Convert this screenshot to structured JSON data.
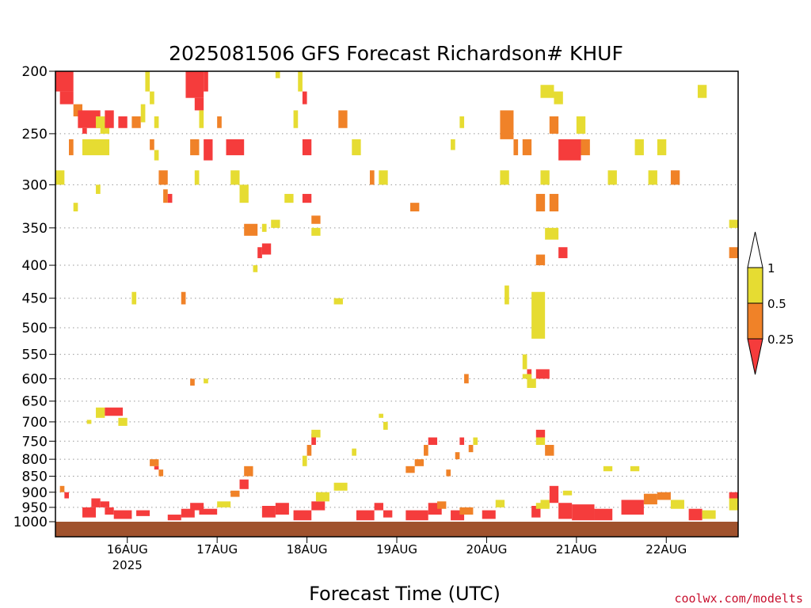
{
  "chart_data": {
    "type": "heatmap",
    "title": "2025081506 GFS Forecast Richardson# KHUF",
    "xlabel": "Forecast Time (UTC)",
    "ylabel": "",
    "credit": "coolwx.com/modelts",
    "y_scale": "log",
    "y_reversed": true,
    "ylim": [
      1000,
      200
    ],
    "y_ticks": [
      200,
      250,
      300,
      350,
      400,
      450,
      500,
      550,
      600,
      650,
      700,
      750,
      800,
      850,
      900,
      950,
      1000
    ],
    "xlim": [
      -0.8,
      6.8
    ],
    "x_ticks": [
      {
        "value": 0,
        "label": "16AUG",
        "sublabel": "2025"
      },
      {
        "value": 1,
        "label": "17AUG",
        "sublabel": ""
      },
      {
        "value": 2,
        "label": "18AUG",
        "sublabel": ""
      },
      {
        "value": 3,
        "label": "19AUG",
        "sublabel": ""
      },
      {
        "value": 4,
        "label": "20AUG",
        "sublabel": ""
      },
      {
        "value": 5,
        "label": "21AUG",
        "sublabel": ""
      },
      {
        "value": 6,
        "label": "22AUG",
        "sublabel": ""
      }
    ],
    "grid": true,
    "legend": {
      "placement": "right",
      "bins": [
        {
          "label": "0.25",
          "color": "#f53c3c"
        },
        {
          "label": "0.5",
          "color": "#f08228"
        },
        {
          "label": "1",
          "color": "#e6dc32"
        }
      ]
    },
    "ground_color": "#a0522d",
    "cells": [
      [
        -0.8,
        -0.6,
        200,
        215,
        "r"
      ],
      [
        -0.75,
        -0.6,
        215,
        225,
        "r"
      ],
      [
        -0.6,
        -0.5,
        225,
        235,
        "o"
      ],
      [
        -0.55,
        -0.3,
        230,
        245,
        "r"
      ],
      [
        -0.5,
        -0.45,
        245,
        250,
        "r"
      ],
      [
        -0.35,
        -0.25,
        235,
        245,
        "y"
      ],
      [
        -0.65,
        -0.6,
        255,
        270,
        "o"
      ],
      [
        -0.5,
        -0.2,
        255,
        270,
        "y"
      ],
      [
        -0.3,
        -0.2,
        240,
        250,
        "y"
      ],
      [
        -0.25,
        -0.15,
        230,
        245,
        "r"
      ],
      [
        -0.1,
        0.0,
        235,
        245,
        "r"
      ],
      [
        0.05,
        0.15,
        235,
        245,
        "o"
      ],
      [
        -0.8,
        -0.7,
        285,
        300,
        "y"
      ],
      [
        -0.6,
        -0.55,
        320,
        330,
        "y"
      ],
      [
        -0.35,
        -0.3,
        300,
        310,
        "y"
      ],
      [
        0.2,
        0.25,
        200,
        215,
        "y"
      ],
      [
        0.25,
        0.3,
        215,
        225,
        "y"
      ],
      [
        0.15,
        0.2,
        225,
        240,
        "y"
      ],
      [
        0.3,
        0.35,
        235,
        245,
        "y"
      ],
      [
        0.25,
        0.3,
        255,
        265,
        "o"
      ],
      [
        0.3,
        0.35,
        265,
        275,
        "y"
      ],
      [
        0.35,
        0.45,
        285,
        300,
        "o"
      ],
      [
        0.4,
        0.45,
        305,
        320,
        "o"
      ],
      [
        0.45,
        0.5,
        310,
        320,
        "r"
      ],
      [
        0.65,
        0.85,
        200,
        220,
        "r"
      ],
      [
        0.75,
        0.85,
        220,
        230,
        "r"
      ],
      [
        0.85,
        0.9,
        200,
        215,
        "r"
      ],
      [
        0.8,
        0.85,
        230,
        245,
        "y"
      ],
      [
        0.7,
        0.8,
        255,
        270,
        "o"
      ],
      [
        0.85,
        0.95,
        255,
        275,
        "r"
      ],
      [
        0.75,
        0.8,
        285,
        300,
        "y"
      ],
      [
        1.0,
        1.05,
        235,
        245,
        "o"
      ],
      [
        1.1,
        1.3,
        255,
        270,
        "r"
      ],
      [
        1.15,
        1.25,
        285,
        300,
        "y"
      ],
      [
        1.25,
        1.35,
        300,
        320,
        "y"
      ],
      [
        1.3,
        1.45,
        345,
        360,
        "o"
      ],
      [
        1.45,
        1.5,
        375,
        390,
        "r"
      ],
      [
        1.5,
        1.6,
        370,
        385,
        "r"
      ],
      [
        1.65,
        1.7,
        200,
        205,
        "y"
      ],
      [
        1.9,
        1.95,
        200,
        215,
        "y"
      ],
      [
        1.95,
        2.0,
        215,
        225,
        "r"
      ],
      [
        1.85,
        1.9,
        230,
        245,
        "y"
      ],
      [
        1.95,
        2.05,
        255,
        270,
        "r"
      ],
      [
        1.75,
        1.85,
        310,
        320,
        "y"
      ],
      [
        1.95,
        2.05,
        310,
        320,
        "r"
      ],
      [
        2.05,
        2.15,
        335,
        345,
        "o"
      ],
      [
        1.5,
        1.55,
        345,
        355,
        "y"
      ],
      [
        1.4,
        1.45,
        400,
        410,
        "y"
      ],
      [
        1.6,
        1.7,
        340,
        350,
        "y"
      ],
      [
        2.05,
        2.15,
        350,
        360,
        "y"
      ],
      [
        2.3,
        2.4,
        450,
        460,
        "y"
      ],
      [
        2.35,
        2.45,
        230,
        245,
        "o"
      ],
      [
        2.5,
        2.6,
        255,
        270,
        "y"
      ],
      [
        2.7,
        2.75,
        285,
        300,
        "o"
      ],
      [
        2.8,
        2.9,
        285,
        300,
        "y"
      ],
      [
        3.15,
        3.25,
        320,
        330,
        "o"
      ],
      [
        3.6,
        3.65,
        255,
        265,
        "y"
      ],
      [
        3.7,
        3.75,
        235,
        245,
        "y"
      ],
      [
        4.15,
        4.3,
        230,
        255,
        "o"
      ],
      [
        4.3,
        4.35,
        255,
        270,
        "o"
      ],
      [
        4.4,
        4.5,
        255,
        270,
        "o"
      ],
      [
        4.15,
        4.25,
        285,
        300,
        "y"
      ],
      [
        4.6,
        4.7,
        285,
        300,
        "y"
      ],
      [
        4.55,
        4.65,
        310,
        330,
        "o"
      ],
      [
        4.7,
        4.8,
        310,
        330,
        "o"
      ],
      [
        4.7,
        4.8,
        235,
        250,
        "o"
      ],
      [
        4.75,
        4.85,
        215,
        225,
        "y"
      ],
      [
        4.6,
        4.75,
        210,
        220,
        "y"
      ],
      [
        4.65,
        4.8,
        350,
        365,
        "y"
      ],
      [
        4.8,
        4.9,
        375,
        390,
        "r"
      ],
      [
        4.55,
        4.65,
        385,
        400,
        "o"
      ],
      [
        4.8,
        5.05,
        255,
        275,
        "r"
      ],
      [
        5.05,
        5.15,
        255,
        270,
        "o"
      ],
      [
        5.0,
        5.1,
        235,
        250,
        "y"
      ],
      [
        5.35,
        5.45,
        285,
        300,
        "y"
      ],
      [
        5.65,
        5.75,
        255,
        270,
        "y"
      ],
      [
        5.8,
        5.9,
        285,
        300,
        "y"
      ],
      [
        5.9,
        6.0,
        255,
        270,
        "y"
      ],
      [
        6.05,
        6.15,
        285,
        300,
        "o"
      ],
      [
        6.35,
        6.45,
        210,
        220,
        "y"
      ],
      [
        6.7,
        6.8,
        340,
        350,
        "y"
      ],
      [
        6.7,
        6.8,
        375,
        390,
        "o"
      ],
      [
        -0.35,
        -0.25,
        665,
        690,
        "y"
      ],
      [
        -0.25,
        -0.05,
        665,
        685,
        "r"
      ],
      [
        -0.1,
        0.0,
        690,
        710,
        "y"
      ],
      [
        -0.45,
        -0.4,
        695,
        705,
        "y"
      ],
      [
        0.25,
        0.35,
        800,
        820,
        "o"
      ],
      [
        0.3,
        0.35,
        820,
        830,
        "r"
      ],
      [
        0.35,
        0.4,
        830,
        850,
        "o"
      ],
      [
        0.7,
        0.75,
        600,
        615,
        "o"
      ],
      [
        0.6,
        0.65,
        440,
        460,
        "o"
      ],
      [
        0.85,
        0.9,
        600,
        610,
        "y"
      ],
      [
        0.05,
        0.1,
        440,
        460,
        "y"
      ],
      [
        2.05,
        2.1,
        730,
        760,
        "r"
      ],
      [
        2.0,
        2.05,
        760,
        790,
        "o"
      ],
      [
        1.95,
        2.0,
        790,
        820,
        "y"
      ],
      [
        2.05,
        2.15,
        720,
        740,
        "y"
      ],
      [
        2.5,
        2.55,
        770,
        790,
        "y"
      ],
      [
        2.8,
        2.85,
        680,
        690,
        "y"
      ],
      [
        2.85,
        2.9,
        700,
        720,
        "y"
      ],
      [
        3.35,
        3.45,
        740,
        760,
        "r"
      ],
      [
        3.3,
        3.35,
        760,
        790,
        "o"
      ],
      [
        3.2,
        3.3,
        800,
        820,
        "o"
      ],
      [
        3.1,
        3.2,
        820,
        840,
        "o"
      ],
      [
        3.7,
        3.75,
        740,
        760,
        "r"
      ],
      [
        3.8,
        3.85,
        760,
        780,
        "o"
      ],
      [
        3.85,
        3.9,
        740,
        760,
        "y"
      ],
      [
        3.65,
        3.7,
        780,
        800,
        "o"
      ],
      [
        3.55,
        3.6,
        830,
        850,
        "o"
      ],
      [
        3.75,
        3.8,
        590,
        610,
        "o"
      ],
      [
        4.4,
        4.45,
        550,
        580,
        "y"
      ],
      [
        4.45,
        4.5,
        580,
        600,
        "r"
      ],
      [
        4.4,
        4.5,
        590,
        600,
        "y"
      ],
      [
        4.5,
        4.65,
        440,
        520,
        "y"
      ],
      [
        4.55,
        4.7,
        580,
        600,
        "r"
      ],
      [
        4.45,
        4.55,
        600,
        620,
        "y"
      ],
      [
        4.2,
        4.25,
        430,
        460,
        "y"
      ],
      [
        4.55,
        4.65,
        720,
        740,
        "r"
      ],
      [
        4.55,
        4.65,
        740,
        760,
        "y"
      ],
      [
        4.65,
        4.75,
        760,
        790,
        "o"
      ],
      [
        5.3,
        5.4,
        820,
        835,
        "y"
      ],
      [
        5.6,
        5.7,
        820,
        835,
        "y"
      ],
      [
        -0.75,
        -0.7,
        880,
        900,
        "o"
      ],
      [
        -0.7,
        -0.65,
        900,
        920,
        "r"
      ],
      [
        -0.5,
        -0.35,
        950,
        985,
        "r"
      ],
      [
        -0.4,
        -0.3,
        920,
        950,
        "r"
      ],
      [
        -0.25,
        -0.15,
        950,
        975,
        "r"
      ],
      [
        -0.3,
        -0.2,
        930,
        950,
        "r"
      ],
      [
        -0.15,
        0.05,
        960,
        990,
        "r"
      ],
      [
        0.1,
        0.25,
        960,
        980,
        "r"
      ],
      [
        0.45,
        0.6,
        975,
        995,
        "r"
      ],
      [
        0.6,
        0.75,
        955,
        985,
        "r"
      ],
      [
        0.7,
        0.85,
        935,
        960,
        "r"
      ],
      [
        0.8,
        1.0,
        955,
        975,
        "r"
      ],
      [
        1.15,
        1.25,
        895,
        915,
        "o"
      ],
      [
        1.25,
        1.35,
        860,
        890,
        "r"
      ],
      [
        1.3,
        1.4,
        820,
        850,
        "o"
      ],
      [
        1.0,
        1.15,
        930,
        950,
        "y"
      ],
      [
        1.5,
        1.65,
        945,
        985,
        "r"
      ],
      [
        1.65,
        1.8,
        935,
        975,
        "r"
      ],
      [
        1.85,
        2.05,
        960,
        995,
        "r"
      ],
      [
        2.05,
        2.2,
        930,
        960,
        "r"
      ],
      [
        2.1,
        2.25,
        900,
        930,
        "y"
      ],
      [
        2.3,
        2.45,
        870,
        895,
        "y"
      ],
      [
        2.55,
        2.75,
        960,
        995,
        "r"
      ],
      [
        2.75,
        2.85,
        935,
        960,
        "r"
      ],
      [
        2.85,
        2.95,
        960,
        985,
        "r"
      ],
      [
        3.1,
        3.35,
        960,
        995,
        "r"
      ],
      [
        3.35,
        3.5,
        935,
        975,
        "r"
      ],
      [
        3.45,
        3.55,
        930,
        955,
        "o"
      ],
      [
        3.6,
        3.75,
        960,
        995,
        "r"
      ],
      [
        3.7,
        3.85,
        950,
        975,
        "o"
      ],
      [
        3.95,
        4.1,
        960,
        990,
        "r"
      ],
      [
        4.1,
        4.2,
        925,
        950,
        "y"
      ],
      [
        4.5,
        4.6,
        945,
        985,
        "r"
      ],
      [
        4.6,
        4.7,
        925,
        950,
        "y"
      ],
      [
        4.7,
        4.8,
        880,
        935,
        "r"
      ],
      [
        4.8,
        4.95,
        935,
        990,
        "r"
      ],
      [
        4.55,
        4.7,
        935,
        955,
        "y"
      ],
      [
        4.85,
        4.95,
        895,
        910,
        "y"
      ],
      [
        4.95,
        5.2,
        940,
        995,
        "r"
      ],
      [
        5.2,
        5.4,
        955,
        995,
        "r"
      ],
      [
        5.5,
        5.75,
        925,
        975,
        "r"
      ],
      [
        5.75,
        5.9,
        905,
        940,
        "o"
      ],
      [
        5.9,
        6.05,
        900,
        925,
        "o"
      ],
      [
        6.05,
        6.2,
        925,
        955,
        "y"
      ],
      [
        6.25,
        6.4,
        955,
        995,
        "r"
      ],
      [
        6.4,
        6.55,
        960,
        990,
        "y"
      ],
      [
        6.7,
        6.8,
        900,
        920,
        "r"
      ],
      [
        6.7,
        6.8,
        920,
        960,
        "y"
      ]
    ]
  }
}
